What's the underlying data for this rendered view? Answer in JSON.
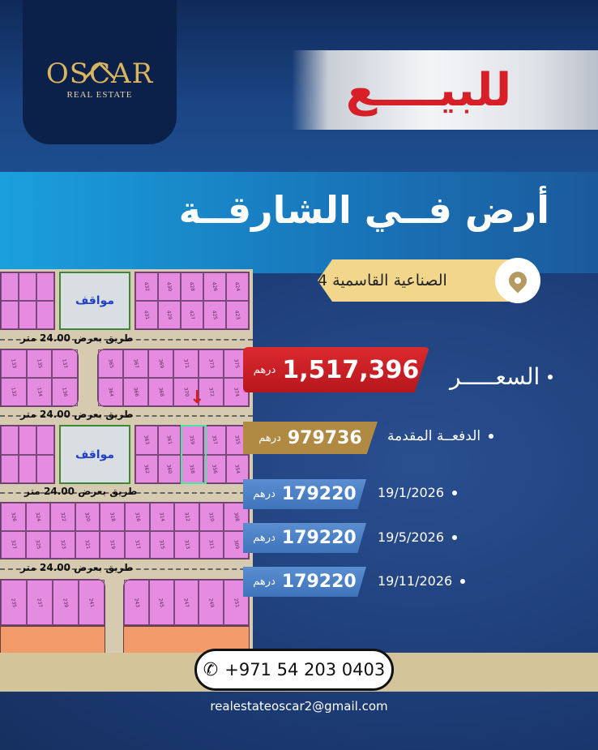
{
  "brand": {
    "name": "OSCAR",
    "tagline": "REAL ESTATE"
  },
  "banner": {
    "for_sale": "للبيــــع"
  },
  "title": "أرض فــي الشارقــة",
  "location": {
    "label": "الصناعية القاسمية 4",
    "icon": "map-pin-icon"
  },
  "price": {
    "label": "السعـــــر",
    "amount": "1,517,396",
    "currency": "درهم"
  },
  "down_payment": {
    "label": "الدفعــة المقدمة",
    "amount": "979736",
    "currency": "درهم"
  },
  "installments": [
    {
      "date": "19/1/2026",
      "amount": "179220",
      "currency": "درهم"
    },
    {
      "date": "19/5/2026",
      "amount": "179220",
      "currency": "درهم"
    },
    {
      "date": "19/11/2026",
      "amount": "179220",
      "currency": "درهم"
    }
  ],
  "map": {
    "parking_label": "مواقف",
    "road_label": "طريق بعرض 24.00 متر",
    "lots": {
      "rowA_right": [
        "432",
        "430",
        "428",
        "426",
        "424",
        "431",
        "429",
        "427",
        "425",
        "423"
      ],
      "rowB_left": [
        "133",
        "135",
        "137",
        "132",
        "134",
        "136"
      ],
      "rowB_right": [
        "365",
        "367",
        "369",
        "371",
        "373",
        "375",
        "364",
        "366",
        "368",
        "370",
        "372",
        "374"
      ],
      "rowC_right": [
        "363",
        "361",
        "359",
        "357",
        "355",
        "362",
        "360",
        "358",
        "356",
        "354"
      ],
      "rowD": [
        "326",
        "324",
        "322",
        "320",
        "318",
        "316",
        "314",
        "312",
        "310",
        "308",
        "327",
        "325",
        "323",
        "321",
        "319",
        "317",
        "315",
        "313",
        "311",
        "309"
      ],
      "rowE_left": [
        "235",
        "237",
        "239",
        "241"
      ],
      "rowE_right": [
        "243",
        "245",
        "247",
        "249",
        "251"
      ]
    }
  },
  "contact": {
    "phone": "+971 54 203 0403",
    "email": "realestateoscar2@gmail.com"
  },
  "colors": {
    "price": "#c81f25",
    "down": "#b08a43",
    "installment": "#4a80c4",
    "gold": "#d9b55f"
  }
}
